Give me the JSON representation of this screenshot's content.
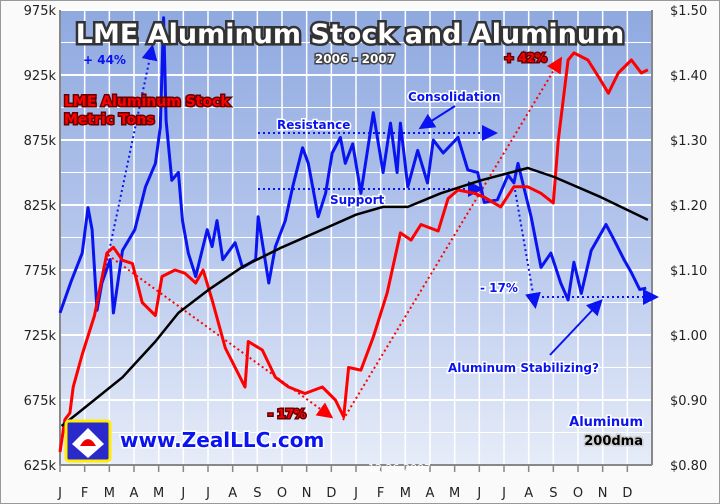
{
  "chart_data": {
    "type": "line",
    "title": "LME Aluminum Stock and Aluminum",
    "subtitle": "2006 - 2007",
    "x_tick_labels": [
      "J",
      "F",
      "M",
      "A",
      "M",
      "J",
      "J",
      "A",
      "S",
      "O",
      "N",
      "D",
      "J",
      "F",
      "M",
      "A",
      "M",
      "J",
      "J",
      "A",
      "S",
      "O",
      "N",
      "D"
    ],
    "xlim": [
      "2006-01-01",
      "2007-12-31"
    ],
    "y_left": {
      "ticks": [
        "975k",
        "925k",
        "875k",
        "825k",
        "775k",
        "725k",
        "675k",
        "625k"
      ],
      "ylim": [
        625000,
        975000
      ]
    },
    "y_right": {
      "ticks": [
        "$1.50",
        "$1.40",
        "$1.30",
        "$1.20",
        "$1.10",
        "$1.00",
        "$0.90",
        "$0.80"
      ],
      "ylim": [
        0.8,
        1.5
      ]
    },
    "grid": true,
    "series": [
      {
        "name": "LME Aluminum Stock Metric Tons",
        "axis": "left",
        "color": "#0a14f0",
        "points": [
          [
            "2006-01-01",
            742000
          ],
          [
            "2006-01-15",
            767000
          ],
          [
            "2006-01-28",
            788000
          ],
          [
            "2006-02-05",
            823000
          ],
          [
            "2006-02-10",
            806000
          ],
          [
            "2006-02-16",
            744000
          ],
          [
            "2006-02-22",
            765000
          ],
          [
            "2006-03-02",
            783000
          ],
          [
            "2006-03-06",
            742000
          ],
          [
            "2006-03-17",
            790000
          ],
          [
            "2006-04-02",
            806000
          ],
          [
            "2006-04-15",
            839000
          ],
          [
            "2006-04-27",
            857000
          ],
          [
            "2006-05-03",
            885000
          ],
          [
            "2006-05-07",
            969000
          ],
          [
            "2006-05-10",
            890000
          ],
          [
            "2006-05-17",
            844000
          ],
          [
            "2006-05-25",
            850000
          ],
          [
            "2006-05-30",
            813000
          ],
          [
            "2006-06-07",
            788000
          ],
          [
            "2006-06-16",
            770000
          ],
          [
            "2006-06-30",
            806000
          ],
          [
            "2006-07-06",
            793000
          ],
          [
            "2006-07-12",
            813000
          ],
          [
            "2006-07-19",
            783000
          ],
          [
            "2006-08-04",
            796000
          ],
          [
            "2006-08-13",
            777000
          ],
          [
            "2006-08-29",
            783000
          ],
          [
            "2006-09-02",
            816000
          ],
          [
            "2006-09-15",
            765000
          ],
          [
            "2006-09-23",
            793000
          ],
          [
            "2006-10-05",
            813000
          ],
          [
            "2006-10-14",
            839000
          ],
          [
            "2006-10-26",
            869000
          ],
          [
            "2006-11-03",
            857000
          ],
          [
            "2006-11-15",
            816000
          ],
          [
            "2006-11-24",
            834000
          ],
          [
            "2006-12-02",
            865000
          ],
          [
            "2006-12-12",
            877000
          ],
          [
            "2006-12-18",
            857000
          ],
          [
            "2006-12-27",
            872000
          ],
          [
            "2007-01-07",
            834000
          ],
          [
            "2007-01-22",
            896000
          ],
          [
            "2007-02-04",
            850000
          ],
          [
            "2007-02-13",
            888000
          ],
          [
            "2007-02-21",
            850000
          ],
          [
            "2007-02-25",
            888000
          ],
          [
            "2007-03-04",
            839000
          ],
          [
            "2007-03-16",
            867000
          ],
          [
            "2007-03-28",
            842000
          ],
          [
            "2007-04-05",
            875000
          ],
          [
            "2007-04-17",
            865000
          ],
          [
            "2007-05-05",
            877000
          ],
          [
            "2007-05-17",
            852000
          ],
          [
            "2007-05-29",
            850000
          ],
          [
            "2007-06-07",
            827000
          ],
          [
            "2007-06-23",
            829000
          ],
          [
            "2007-07-06",
            848000
          ],
          [
            "2007-07-13",
            842000
          ],
          [
            "2007-07-18",
            857000
          ],
          [
            "2007-07-25",
            839000
          ],
          [
            "2007-08-04",
            816000
          ],
          [
            "2007-08-16",
            777000
          ],
          [
            "2007-08-28",
            788000
          ],
          [
            "2007-09-10",
            765000
          ],
          [
            "2007-09-19",
            752000
          ],
          [
            "2007-09-26",
            781000
          ],
          [
            "2007-10-05",
            757000
          ],
          [
            "2007-10-17",
            790000
          ],
          [
            "2007-11-05",
            810000
          ],
          [
            "2007-11-15",
            798000
          ],
          [
            "2007-11-27",
            783000
          ],
          [
            "2007-12-06",
            773000
          ],
          [
            "2007-12-16",
            760000
          ],
          [
            "2007-12-24",
            761000
          ]
        ]
      },
      {
        "name": "Aluminum",
        "axis": "right",
        "color": "#ff0000",
        "points": [
          [
            "2006-01-01",
            0.82
          ],
          [
            "2006-01-07",
            0.87
          ],
          [
            "2006-01-13",
            0.88
          ],
          [
            "2006-01-17",
            0.92
          ],
          [
            "2006-01-28",
            0.97
          ],
          [
            "2006-02-13",
            1.03
          ],
          [
            "2006-02-28",
            1.126
          ],
          [
            "2006-03-06",
            1.135
          ],
          [
            "2006-03-17",
            1.115
          ],
          [
            "2006-03-29",
            1.11
          ],
          [
            "2006-04-11",
            1.05
          ],
          [
            "2006-04-27",
            1.03
          ],
          [
            "2006-05-05",
            1.09
          ],
          [
            "2006-05-21",
            1.1
          ],
          [
            "2006-06-03",
            1.095
          ],
          [
            "2006-06-16",
            1.08
          ],
          [
            "2006-06-25",
            1.1
          ],
          [
            "2006-07-06",
            1.054
          ],
          [
            "2006-07-22",
            0.98
          ],
          [
            "2006-08-16",
            0.92
          ],
          [
            "2006-08-20",
            0.99
          ],
          [
            "2006-09-07",
            0.977
          ],
          [
            "2006-09-23",
            0.935
          ],
          [
            "2006-10-09",
            0.92
          ],
          [
            "2006-10-29",
            0.91
          ],
          [
            "2006-11-20",
            0.92
          ],
          [
            "2006-12-06",
            0.9
          ],
          [
            "2006-12-16",
            0.874
          ],
          [
            "2006-12-22",
            0.95
          ],
          [
            "2007-01-07",
            0.946
          ],
          [
            "2007-01-22",
            0.997
          ],
          [
            "2007-02-09",
            1.065
          ],
          [
            "2007-02-25",
            1.157
          ],
          [
            "2007-03-08",
            1.146
          ],
          [
            "2007-03-20",
            1.17
          ],
          [
            "2007-04-11",
            1.16
          ],
          [
            "2007-04-23",
            1.21
          ],
          [
            "2007-05-05",
            1.223
          ],
          [
            "2007-05-25",
            1.218
          ],
          [
            "2007-06-07",
            1.212
          ],
          [
            "2007-06-27",
            1.197
          ],
          [
            "2007-07-13",
            1.228
          ],
          [
            "2007-07-30",
            1.228
          ],
          [
            "2007-08-16",
            1.218
          ],
          [
            "2007-09-01",
            1.203
          ],
          [
            "2007-09-07",
            1.3
          ],
          [
            "2007-09-19",
            1.423
          ],
          [
            "2007-09-26",
            1.434
          ],
          [
            "2007-10-13",
            1.423
          ],
          [
            "2007-10-26",
            1.397
          ],
          [
            "2007-11-08",
            1.372
          ],
          [
            "2007-11-20",
            1.403
          ],
          [
            "2007-12-06",
            1.423
          ],
          [
            "2007-12-18",
            1.403
          ],
          [
            "2007-12-26",
            1.408
          ]
        ]
      },
      {
        "name": "200dma",
        "axis": "right",
        "color": "#000000",
        "points": [
          [
            "2006-01-03",
            0.86
          ],
          [
            "2006-01-23",
            0.88
          ],
          [
            "2006-03-17",
            0.935
          ],
          [
            "2006-04-27",
            0.99
          ],
          [
            "2006-05-25",
            1.034
          ],
          [
            "2006-07-01",
            1.069
          ],
          [
            "2006-08-13",
            1.105
          ],
          [
            "2006-10-01",
            1.135
          ],
          [
            "2006-11-27",
            1.166
          ],
          [
            "2006-12-31",
            1.185
          ],
          [
            "2007-02-04",
            1.197
          ],
          [
            "2007-03-04",
            1.197
          ],
          [
            "2007-04-14",
            1.218
          ],
          [
            "2007-06-03",
            1.238
          ],
          [
            "2007-07-30",
            1.257
          ],
          [
            "2007-09-02",
            1.243
          ],
          [
            "2007-10-29",
            1.212
          ],
          [
            "2007-12-26",
            1.177
          ]
        ]
      }
    ],
    "annotations": {
      "plus44": "+ 44%",
      "stock_label_1": "LME Aluminum Stock",
      "stock_label_2": "Metric Tons",
      "resistance": "Resistance",
      "consolidation": "Consolidation",
      "support": "Support",
      "plus42": "+ 42%",
      "minus17_red": "- 17%",
      "minus17_blue": "- 17%",
      "stabilizing": "Aluminum Stabilizing?",
      "legend_aluminum": "Aluminum",
      "legend_200dma": "200dma",
      "website": "www.ZealLLC.com",
      "date": "12.26.2007"
    }
  }
}
